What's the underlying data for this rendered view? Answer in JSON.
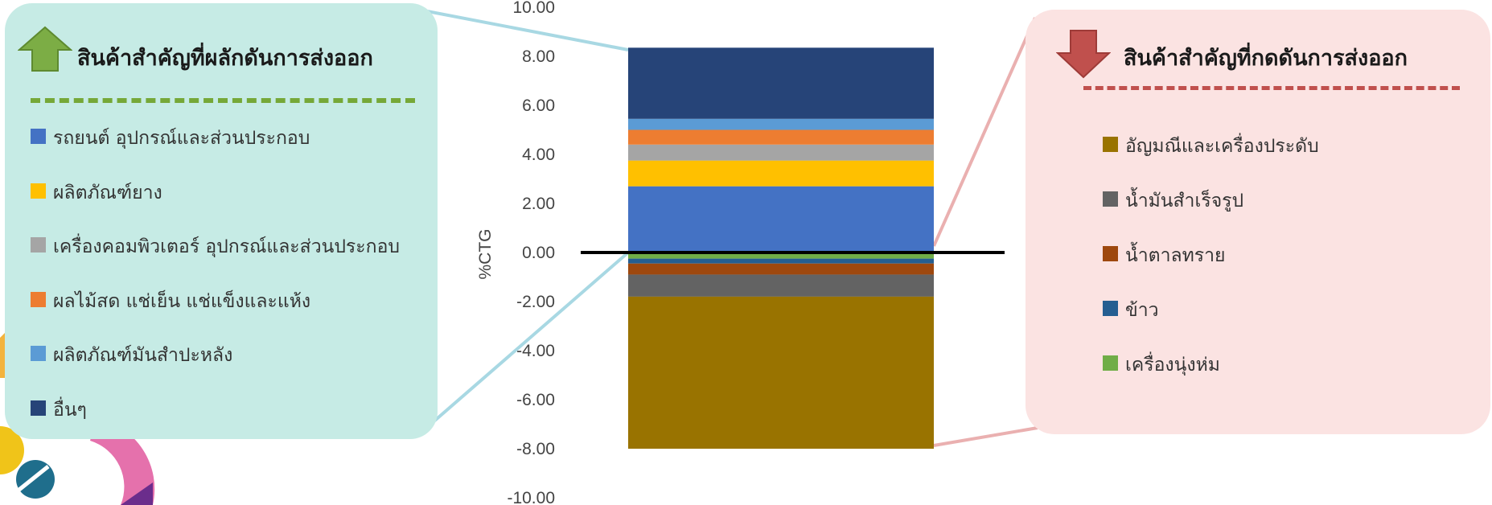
{
  "colors": {
    "left_panel": "#c6ebe5",
    "right_panel": "#fbe3e2",
    "up_arrow": "#7cad45",
    "down_arrow": "#c0504d",
    "zero_line": "#000000"
  },
  "left_panel": {
    "title": "สินค้าสำคัญที่ผลักดันการส่งออก",
    "icon": "up-arrow-icon"
  },
  "right_panel": {
    "title": "สินค้าสำคัญที่กดดันการส่งออก",
    "icon": "down-arrow-icon"
  },
  "chart_data": {
    "type": "bar",
    "stacked": true,
    "categories": [
      ""
    ],
    "ylabel": "%CTG",
    "ylim": [
      -10,
      10
    ],
    "yticks": [
      "10.00",
      "8.00",
      "6.00",
      "4.00",
      "2.00",
      "0.00",
      "-2.00",
      "-4.00",
      "-6.00",
      "-8.00",
      "-10.00"
    ],
    "grid": false,
    "positive_series": [
      {
        "name": "รถยนต์ อุปกรณ์และส่วนประกอบ",
        "value": 2.7,
        "color": "#4472c4"
      },
      {
        "name": "ผลิตภัณฑ์ยาง",
        "value": 1.05,
        "color": "#ffc000"
      },
      {
        "name": "เครื่องคอมพิวเตอร์ อุปกรณ์และส่วนประกอบ",
        "value": 0.65,
        "color": "#a5a5a5"
      },
      {
        "name": "ผลไม้สด แช่เย็น แช่แข็งและแห้ง",
        "value": 0.6,
        "color": "#ed7d31"
      },
      {
        "name": "ผลิตภัณฑ์มันสำปะหลัง",
        "value": 0.45,
        "color": "#5b9bd5"
      },
      {
        "name": "อื่นๆ",
        "value": 2.9,
        "color": "#264478"
      }
    ],
    "negative_series": [
      {
        "name": "อัญมณีและเครื่องประดับ",
        "value": -6.2,
        "color": "#997300"
      },
      {
        "name": "น้ำมันสำเร็จรูป",
        "value": -0.9,
        "color": "#636363"
      },
      {
        "name": "น้ำตาลทราย",
        "value": -0.45,
        "color": "#9e480e"
      },
      {
        "name": "ข้าว",
        "value": -0.2,
        "color": "#255e91"
      },
      {
        "name": "เครื่องนุ่งห่ม",
        "value": -0.25,
        "color": "#70ad47"
      }
    ]
  }
}
